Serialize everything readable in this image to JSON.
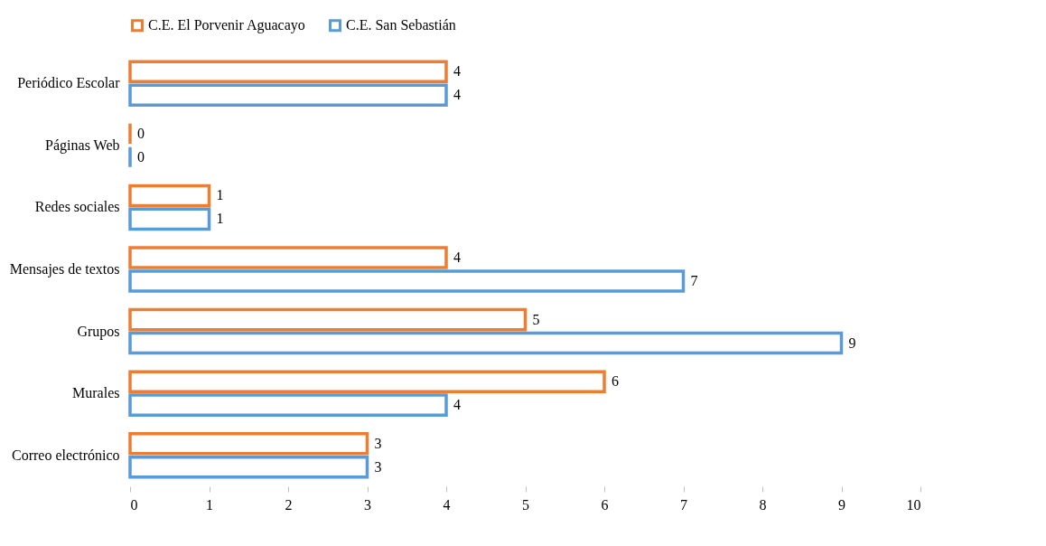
{
  "chart_data": {
    "type": "bar",
    "orientation": "horizontal",
    "categories": [
      "Periódico Escolar",
      "Páginas Web",
      "Redes sociales",
      "Mensajes de textos",
      "Grupos",
      "Murales",
      "Correo electrónico"
    ],
    "series": [
      {
        "name": "C.E. El Porvenir Aguacayo",
        "color": "#ed7d31",
        "values": [
          4,
          0,
          1,
          4,
          5,
          6,
          3
        ]
      },
      {
        "name": "C.E. San Sebastián",
        "color": "#5b9bd5",
        "values": [
          4,
          0,
          1,
          7,
          9,
          4,
          3
        ]
      }
    ],
    "xlim": [
      0,
      10
    ],
    "xticks": [
      0,
      1,
      2,
      3,
      4,
      5,
      6,
      7,
      8,
      9,
      10
    ],
    "data_labels": true,
    "legend": "top",
    "grid": false
  }
}
